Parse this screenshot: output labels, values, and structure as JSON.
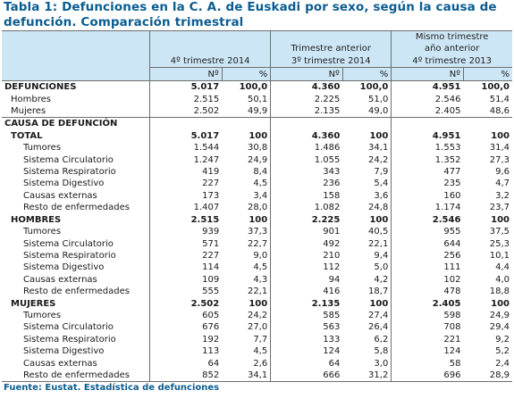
{
  "title_line1": "Tabla 1: Defunciones en la C. A. de Euskadi por sexo, según la causa de",
  "title_line2": "defunción. Comparación trimestral",
  "columns": {
    "c1": "4º trimestre 2014",
    "c2_line1": "Trimestre anterior",
    "c2_line2": "3º trimestre 2014",
    "c3_line1": "Mismo trimestre",
    "c3_line2": "año anterior",
    "c3_line3": "4º trimestre 2013",
    "n_label": "Nº",
    "pct_label": "%"
  },
  "defunciones": {
    "header": [
      "DEFUNCIONES",
      "5.017",
      "100,0",
      "4.360",
      "100,0",
      "4.951",
      "100,0"
    ],
    "rows": [
      [
        "Hombres",
        "2.515",
        "50,1",
        "2.225",
        "51,0",
        "2.546",
        "51,4"
      ],
      [
        "Mujeres",
        "2.502",
        "49,9",
        "2.135",
        "49,0",
        "2.405",
        "48,6"
      ]
    ]
  },
  "causa_label": "CAUSA DE DEFUNCIÓN",
  "groups": [
    {
      "header": [
        "TOTAL",
        "5.017",
        "100",
        "4.360",
        "100",
        "4.951",
        "100"
      ],
      "rows": [
        [
          "Tumores",
          "1.544",
          "30,8",
          "1.486",
          "34,1",
          "1.553",
          "31,4"
        ],
        [
          "Sistema Circulatorio",
          "1.247",
          "24,9",
          "1.055",
          "24,2",
          "1.352",
          "27,3"
        ],
        [
          "Sistema Respiratorio",
          "419",
          "8,4",
          "343",
          "7,9",
          "477",
          "9,6"
        ],
        [
          "Sistema Digestivo",
          "227",
          "4,5",
          "236",
          "5,4",
          "235",
          "4,7"
        ],
        [
          "Causas externas",
          "173",
          "3,4",
          "158",
          "3,6",
          "160",
          "3,2"
        ],
        [
          "Resto de enfermedades",
          "1.407",
          "28,0",
          "1.082",
          "24,8",
          "1.174",
          "23,7"
        ]
      ]
    },
    {
      "header": [
        "HOMBRES",
        "2.515",
        "100",
        "2.225",
        "100",
        "2.546",
        "100"
      ],
      "rows": [
        [
          "Tumores",
          "939",
          "37,3",
          "901",
          "40,5",
          "955",
          "37,5"
        ],
        [
          "Sistema Circulatorio",
          "571",
          "22,7",
          "492",
          "22,1",
          "644",
          "25,3"
        ],
        [
          "Sistema Respiratorio",
          "227",
          "9,0",
          "210",
          "9,4",
          "256",
          "10,1"
        ],
        [
          "Sistema Digestivo",
          "114",
          "4,5",
          "112",
          "5,0",
          "111",
          "4,4"
        ],
        [
          "Causas externas",
          "109",
          "4,3",
          "94",
          "4,2",
          "102",
          "4,0"
        ],
        [
          "Resto de enfermedades",
          "555",
          "22,1",
          "416",
          "18,7",
          "478",
          "18,8"
        ]
      ]
    },
    {
      "header": [
        "MUJERES",
        "2.502",
        "100",
        "2.135",
        "100",
        "2.405",
        "100"
      ],
      "rows": [
        [
          "Tumores",
          "605",
          "24,2",
          "585",
          "27,4",
          "598",
          "24,9"
        ],
        [
          "Sistema Circulatorio",
          "676",
          "27,0",
          "563",
          "26,4",
          "708",
          "29,4"
        ],
        [
          "Sistema Respiratorio",
          "192",
          "7,7",
          "133",
          "6,2",
          "221",
          "9,2"
        ],
        [
          "Sistema Digestivo",
          "113",
          "4,5",
          "124",
          "5,8",
          "124",
          "5,2"
        ],
        [
          "Causas externas",
          "64",
          "2,6",
          "64",
          "3,0",
          "58",
          "2,4"
        ],
        [
          "Resto de enfermedades",
          "852",
          "34,1",
          "666",
          "31,2",
          "696",
          "28,9"
        ]
      ]
    }
  ],
  "source": "Fuente: Eustat. Estadística de defunciones",
  "colors": {
    "title": "#0b5d90",
    "header_bg": "#cde6f5"
  }
}
